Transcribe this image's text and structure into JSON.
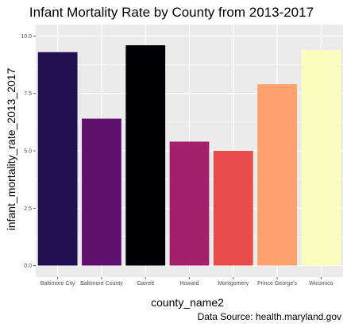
{
  "chart_data": {
    "type": "bar",
    "title": "Infant Mortality Rate by County from 2013-2017",
    "xlabel": "county_name2",
    "ylabel": "infant_mortality_rate_2013_2017",
    "caption": "Data Source: health.maryland.gov",
    "categories": [
      "Baltimore City",
      "Baltimore County",
      "Garrett",
      "Howard",
      "Montgomery",
      "Prince George's",
      "Wicomico"
    ],
    "values": [
      9.3,
      6.4,
      9.6,
      5.4,
      5.0,
      7.9,
      9.4
    ],
    "colors": [
      "#221150",
      "#5f0f6e",
      "#000004",
      "#a3216a",
      "#e74c4a",
      "#fea16e",
      "#fbfdbf"
    ],
    "ylim": [
      0,
      10
    ],
    "yticks": [
      0,
      2.5,
      5,
      7.5,
      10
    ],
    "ytick_labels": [
      "0.0",
      "2.5",
      "5.0",
      "7.5",
      "10.0"
    ],
    "grid": true,
    "legend": "none",
    "panel_background": "#ebebeb",
    "grid_color": "#ffffff"
  }
}
